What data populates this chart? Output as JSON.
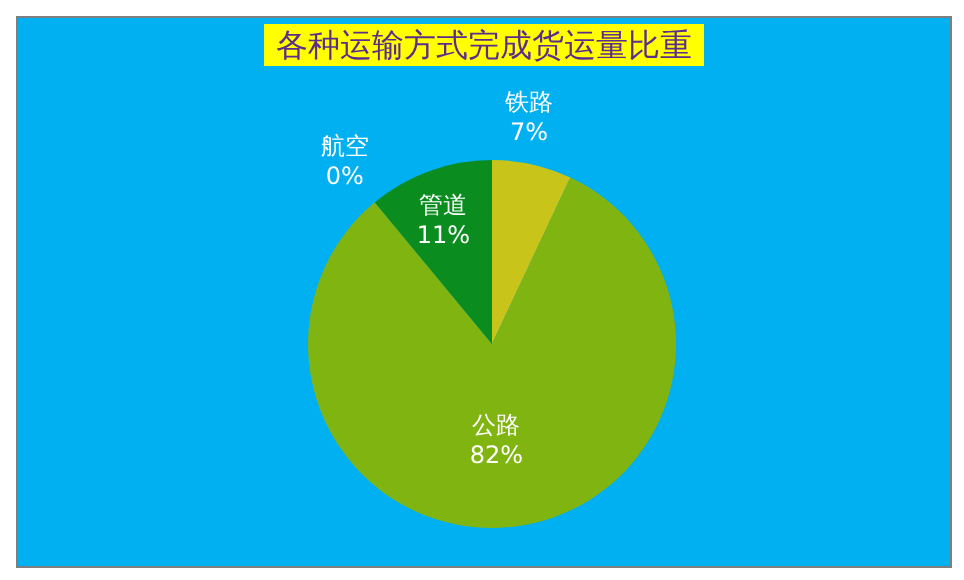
{
  "chart_data": {
    "type": "pie",
    "title": "各种运输方式完成货运量比重",
    "categories": [
      "铁路",
      "公路",
      "航空",
      "管道"
    ],
    "values": [
      7,
      82,
      0,
      11
    ],
    "colors": [
      "#c8c41a",
      "#80b410",
      "#2a9a2a",
      "#0a8c1e"
    ],
    "value_labels": [
      "7%",
      "82%",
      "0%",
      "11%"
    ]
  }
}
